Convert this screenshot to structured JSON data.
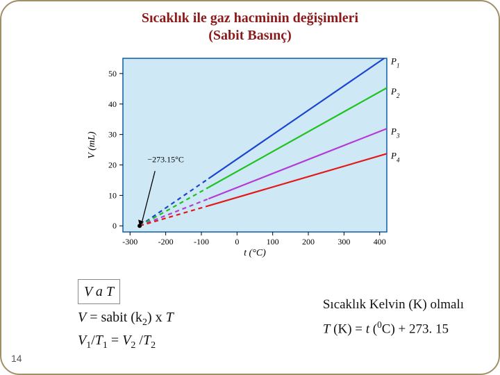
{
  "page_number": "14",
  "title_line1": "Sıcaklık ile gaz hacminin değişimleri",
  "title_line2": "(Sabit Basınç)",
  "title_color": "#8b1a1a",
  "border_color": "#a09068",
  "chart": {
    "type": "line",
    "background": "#cfe8f5",
    "frame_color": "#0d5aa6",
    "grid_color": "#cfe8f5",
    "outer_bg": "#ffffff",
    "x_label": "t (°C)",
    "y_label": "V (mL)",
    "label_fontsize": 14,
    "tick_fontsize": 12,
    "x_ticks": [
      -300,
      -200,
      -100,
      0,
      100,
      200,
      300,
      400
    ],
    "y_ticks": [
      0,
      10,
      20,
      30,
      40,
      50
    ],
    "xlim": [
      -320,
      420
    ],
    "ylim": [
      -2,
      55
    ],
    "arrow_label": "−273.15°C",
    "intersection_x": -273.15,
    "lines": [
      {
        "name": "P1",
        "color": "#1a45d0",
        "solid_from_x": -80,
        "y_at_x400": 54,
        "label_x": 415
      },
      {
        "name": "P2",
        "color": "#1fc21f",
        "solid_from_x": -80,
        "y_at_x400": 44,
        "label_x": 415
      },
      {
        "name": "P3",
        "color": "#b43ad6",
        "solid_from_x": -80,
        "y_at_x400": 31,
        "label_x": 415
      },
      {
        "name": "P4",
        "color": "#e11a1a",
        "solid_from_x": -80,
        "y_at_x400": 23,
        "label_x": 415
      }
    ],
    "dash_pattern": "6,5",
    "line_width": 2.2
  },
  "eq_boxed": "V a T",
  "eq_line2_pre": "V",
  "eq_line2_mid": " = sabit (k",
  "eq_line2_sub": "2",
  "eq_line2_post": ") x ",
  "eq_line2_T": "T",
  "eq_line3": "V₁/T₁ = V₂ /T₂",
  "eq_line3_raw": {
    "V1": "V",
    "s1": "1",
    "T1": "T",
    "s1b": "1",
    "eq": " = ",
    "V2": "V",
    "s2": "2",
    "T2": "T",
    "s2b": "2",
    "slash": "/"
  },
  "kelvin_line1": "Sıcaklık Kelvin (K) olmalı",
  "kelvin_line2_pre": "T",
  "kelvin_line2_k": " (K) = ",
  "kelvin_line2_t": "t",
  "kelvin_line2_paren": " (",
  "kelvin_line2_sup": "0",
  "kelvin_line2_C": "C) + 273. 15"
}
